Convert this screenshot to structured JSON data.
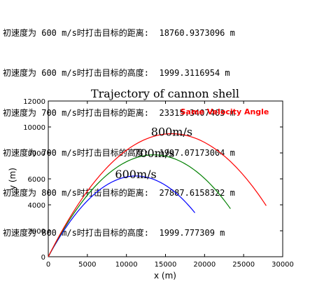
{
  "console": {
    "lines": [
      "初速度为 600 m/s时打击目标的距离:  18760.9373096 m",
      "初速度为 600 m/s时打击目标的高度:  1999.3116954 m",
      "初速度为 700 m/s时打击目标的距离:  23315.3407403 m",
      "初速度为 700 m/s时打击目标的高度:  1997.07173004 m",
      "初速度为 800 m/s时打击目标的距离:  27887.6158322 m",
      "初速度为 800 m/s时打击目标的高度:  1999.777309 m"
    ]
  },
  "chart_data": {
    "type": "line",
    "title": "Trajectory of cannon shell",
    "xlabel": "x (m)",
    "ylabel": "y (m)",
    "xlim": [
      0,
      30000
    ],
    "ylim": [
      0,
      12000
    ],
    "xticks": [
      0,
      5000,
      10000,
      15000,
      20000,
      25000,
      30000
    ],
    "yticks": [
      0,
      2000,
      4000,
      6000,
      8000,
      10000,
      12000
    ],
    "annotation": {
      "text": "Same Velocity Angle",
      "color": "#ff0000"
    },
    "series": [
      {
        "name": "600m/s",
        "color": "#0000ff",
        "apex": [
          11200,
          6220
        ],
        "end": [
          18761,
          1999
        ]
      },
      {
        "name": "700m/s",
        "color": "#008000",
        "apex": [
          13500,
          7850
        ],
        "end": [
          23315,
          1997
        ]
      },
      {
        "name": "800m/s",
        "color": "#ff0000",
        "apex": [
          15800,
          9480
        ],
        "end": [
          27888,
          2000
        ]
      }
    ]
  }
}
